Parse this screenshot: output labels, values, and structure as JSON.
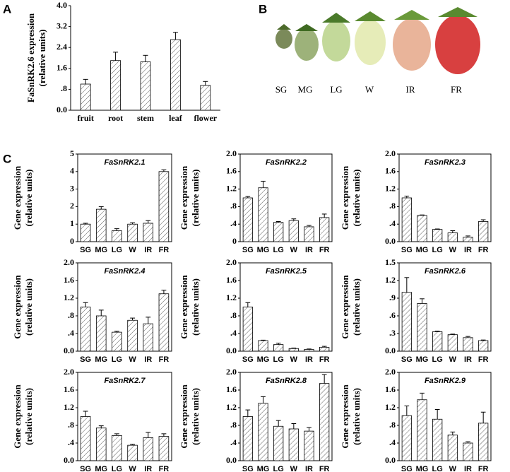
{
  "panel_labels": [
    "A",
    "B",
    "C"
  ],
  "photo": {
    "labels": [
      "SG",
      "MG",
      "LG",
      "W",
      "IR",
      "FR"
    ]
  },
  "chart_data": [
    {
      "type": "bar",
      "ylabel": [
        "FaSnRK2.6 expression",
        "(relative units)"
      ],
      "categories": [
        "fruit",
        "root",
        "stem",
        "leaf",
        "flower"
      ],
      "values": [
        1.0,
        1.9,
        1.85,
        2.7,
        0.95
      ],
      "errors": [
        0.18,
        0.32,
        0.25,
        0.28,
        0.15
      ],
      "ylim": [
        0,
        4.0
      ],
      "yticks": [
        {
          "value": 0,
          "label": "0.0"
        },
        {
          "value": 0.8,
          "label": ".8"
        },
        1.6,
        2.4,
        3.2,
        {
          "value": 4.0,
          "label": "4.0"
        }
      ],
      "color": "#ffffff"
    },
    {
      "type": "bar",
      "title": "FaSnRK2.1",
      "ylabel": [
        "Gene expression",
        "(relative units)"
      ],
      "categories": [
        "SG",
        "MG",
        "LG",
        "W",
        "IR",
        "FR"
      ],
      "values": [
        1.0,
        1.85,
        0.62,
        1.0,
        1.05,
        4.0
      ],
      "errors": [
        0.05,
        0.15,
        0.12,
        0.08,
        0.15,
        0.1
      ],
      "ylim": [
        0,
        5
      ],
      "yticks": [
        0,
        1,
        2,
        3,
        4,
        5
      ],
      "color": "#ffffff"
    },
    {
      "type": "bar",
      "title": "FaSnRK2.2",
      "ylabel": [
        "Gene expression",
        "(relative units)"
      ],
      "categories": [
        "SG",
        "MG",
        "LG",
        "W",
        "IR",
        "FR"
      ],
      "values": [
        1.0,
        1.23,
        0.44,
        0.48,
        0.34,
        0.55
      ],
      "errors": [
        0.03,
        0.15,
        0.02,
        0.04,
        0.03,
        0.08
      ],
      "ylim": [
        0,
        2.0
      ],
      "yticks": [
        0,
        {
          "value": 0.4,
          "label": ".4"
        },
        {
          "value": 0.8,
          "label": ".8"
        },
        1.2,
        1.6,
        {
          "value": 2.0,
          "label": "2.0"
        }
      ],
      "color": "#ffffff"
    },
    {
      "type": "bar",
      "title": "FaSnRK2.3",
      "ylabel": [
        "Gene expression",
        "(relative units)"
      ],
      "categories": [
        "SG",
        "MG",
        "LG",
        "W",
        "IR",
        "FR"
      ],
      "values": [
        1.0,
        0.6,
        0.28,
        0.2,
        0.1,
        0.46
      ],
      "errors": [
        0.04,
        0.01,
        0.01,
        0.05,
        0.03,
        0.04
      ],
      "ylim": [
        0,
        2.0
      ],
      "yticks": [
        {
          "value": 0,
          "label": "0.0"
        },
        {
          "value": 0.4,
          "label": ".4"
        },
        {
          "value": 0.8,
          "label": ".8"
        },
        1.2,
        1.6,
        {
          "value": 2.0,
          "label": "2.0"
        }
      ],
      "color": "#ffffff"
    },
    {
      "type": "bar",
      "title": "FaSnRK2.4",
      "ylabel": [
        "Gene expression",
        "(relative units)"
      ],
      "categories": [
        "SG",
        "MG",
        "LG",
        "W",
        "IR",
        "FR"
      ],
      "values": [
        1.0,
        0.8,
        0.43,
        0.7,
        0.62,
        1.3
      ],
      "errors": [
        0.1,
        0.13,
        0.02,
        0.05,
        0.15,
        0.08
      ],
      "ylim": [
        0,
        2.0
      ],
      "yticks": [
        {
          "value": 0,
          "label": "0.0"
        },
        {
          "value": 0.4,
          "label": ".4"
        },
        {
          "value": 0.8,
          "label": ".8"
        },
        1.2,
        1.6,
        {
          "value": 2.0,
          "label": "2.0"
        }
      ],
      "color": "#ffffff"
    },
    {
      "type": "bar",
      "title": "FaSnRK2.5",
      "ylabel": [
        "Gene expression",
        "(relative units)"
      ],
      "categories": [
        "SG",
        "MG",
        "LG",
        "W",
        "IR",
        "FR"
      ],
      "values": [
        1.0,
        0.24,
        0.15,
        0.06,
        0.04,
        0.09
      ],
      "errors": [
        0.1,
        0.01,
        0.03,
        0.01,
        0.01,
        0.02
      ],
      "ylim": [
        0,
        2.0
      ],
      "yticks": [
        {
          "value": 0,
          "label": "0.0"
        },
        {
          "value": 0.4,
          "label": ".4"
        },
        {
          "value": 0.8,
          "label": ".8"
        },
        1.2,
        1.6,
        {
          "value": 2.0,
          "label": "2.0"
        }
      ],
      "color": "#ffffff"
    },
    {
      "type": "bar",
      "title": "FaSnRK2.6",
      "ylabel": [
        "Gene expression",
        "(relative units)"
      ],
      "categories": [
        "SG",
        "MG",
        "LG",
        "W",
        "IR",
        "FR"
      ],
      "values": [
        1.0,
        0.81,
        0.33,
        0.28,
        0.23,
        0.18
      ],
      "errors": [
        0.25,
        0.08,
        0.01,
        0.01,
        0.02,
        0.01
      ],
      "ylim": [
        0,
        1.5
      ],
      "yticks": [
        {
          "value": 0,
          "label": "0.0"
        },
        {
          "value": 0.3,
          "label": ".3"
        },
        {
          "value": 0.6,
          "label": ".6"
        },
        {
          "value": 0.9,
          "label": ".9"
        },
        1.2,
        1.5
      ],
      "color": "#ffffff"
    },
    {
      "type": "bar",
      "title": "FaSnRK2.7",
      "ylabel": [
        "Gene expression",
        "(relative units)"
      ],
      "categories": [
        "SG",
        "MG",
        "LG",
        "W",
        "IR",
        "FR"
      ],
      "values": [
        1.0,
        0.74,
        0.57,
        0.35,
        0.52,
        0.55
      ],
      "errors": [
        0.12,
        0.05,
        0.04,
        0.02,
        0.12,
        0.06
      ],
      "ylim": [
        0,
        2.0
      ],
      "yticks": [
        {
          "value": 0,
          "label": "0.0"
        },
        {
          "value": 0.4,
          "label": ".4"
        },
        {
          "value": 0.8,
          "label": ".8"
        },
        1.2,
        1.6,
        {
          "value": 2.0,
          "label": "2.0"
        }
      ],
      "color": "#ffffff"
    },
    {
      "type": "bar",
      "title": "FaSnRK2.8",
      "ylabel": [
        "Gene expression",
        "(relative units)"
      ],
      "categories": [
        "SG",
        "MG",
        "LG",
        "W",
        "IR",
        "FR"
      ],
      "values": [
        1.0,
        1.3,
        0.78,
        0.72,
        0.67,
        1.75
      ],
      "errors": [
        0.15,
        0.15,
        0.13,
        0.12,
        0.08,
        0.2
      ],
      "ylim": [
        0,
        2.0
      ],
      "yticks": [
        {
          "value": 0,
          "label": "0.0"
        },
        {
          "value": 0.4,
          "label": ".4"
        },
        {
          "value": 0.8,
          "label": ".8"
        },
        1.2,
        1.6,
        {
          "value": 2.0,
          "label": "2.0"
        }
      ],
      "color": "#ffffff"
    },
    {
      "type": "bar",
      "title": "FaSnRK2.9",
      "ylabel": [
        "Gene expression",
        "(relative units)"
      ],
      "categories": [
        "SG",
        "MG",
        "LG",
        "W",
        "IR",
        "FR"
      ],
      "values": [
        1.02,
        1.38,
        0.94,
        0.58,
        0.4,
        0.85
      ],
      "errors": [
        0.22,
        0.15,
        0.22,
        0.07,
        0.03,
        0.25
      ],
      "ylim": [
        0,
        2.0
      ],
      "yticks": [
        {
          "value": 0,
          "label": "0.0"
        },
        {
          "value": 0.4,
          "label": ".4"
        },
        {
          "value": 0.8,
          "label": ".8"
        },
        1.2,
        1.6,
        {
          "value": 2.0,
          "label": "2.0"
        }
      ],
      "color": "#ffffff"
    }
  ]
}
